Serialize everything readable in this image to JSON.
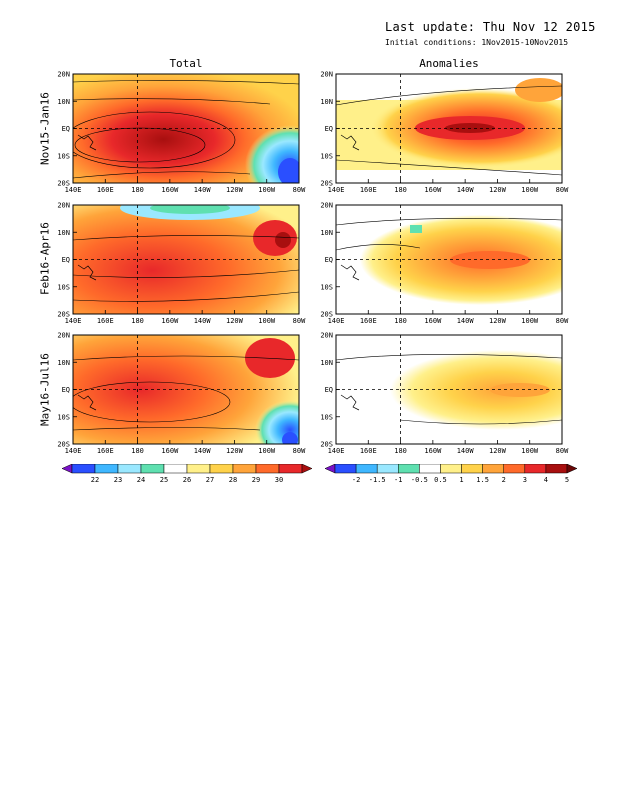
{
  "header": {
    "last_update": "Last update: Thu Nov 12 2015",
    "initial_conditions": "Initial conditions: 1Nov2015-10Nov2015"
  },
  "columns": [
    "Total",
    "Anomalies"
  ],
  "rows": [
    "Nov15-Jan16",
    "Feb16-Apr16",
    "May16-Jul16"
  ],
  "axes": {
    "lon_ticks": [
      "140E",
      "160E",
      "180",
      "160W",
      "140W",
      "120W",
      "100W",
      "80W"
    ],
    "lat_ticks": [
      "20N",
      "10N",
      "EQ",
      "10S",
      "20S"
    ]
  },
  "colorbars": {
    "total": {
      "labels": [
        "22",
        "23",
        "24",
        "25",
        "26",
        "27",
        "28",
        "29",
        "30"
      ],
      "colors": [
        "#7a12c8",
        "#2a4fff",
        "#3fb7ff",
        "#9ae8ff",
        "#5fe0b0",
        "#ffffff",
        "#fff08a",
        "#ffd24a",
        "#ffa43a",
        "#ff6a2a",
        "#e8282a",
        "#a80f0f"
      ]
    },
    "anomalies": {
      "labels": [
        "-2",
        "-1.5",
        "-1",
        "-0.5",
        "0.5",
        "1",
        "1.5",
        "2",
        "3",
        "4",
        "5"
      ],
      "colors": [
        "#7a12c8",
        "#2a4fff",
        "#3fb7ff",
        "#9ae8ff",
        "#5fe0b0",
        "#ffffff",
        "#fff08a",
        "#ffd24a",
        "#ffa43a",
        "#ff6a2a",
        "#e8282a",
        "#a80f0f",
        "#6a0606"
      ]
    }
  },
  "chart_data": {
    "type": "heatmap",
    "title": "",
    "variable_columns": [
      "Total",
      "Anomalies"
    ],
    "seasons": [
      "Nov15-Jan16",
      "Feb16-Apr16",
      "May16-Jul16"
    ],
    "lon_range": [
      "140E",
      "80W"
    ],
    "lat_range": [
      "20S",
      "20N"
    ],
    "total_levels": [
      22,
      23,
      24,
      25,
      26,
      27,
      28,
      29,
      30
    ],
    "anomaly_levels": [
      -2,
      -1.5,
      -1,
      -0.5,
      0.5,
      1,
      1.5,
      2,
      3,
      4,
      5
    ],
    "approx_max_anomaly": [
      4,
      3,
      2
    ],
    "grid_reference_lines": [
      "EQ",
      "180"
    ]
  }
}
